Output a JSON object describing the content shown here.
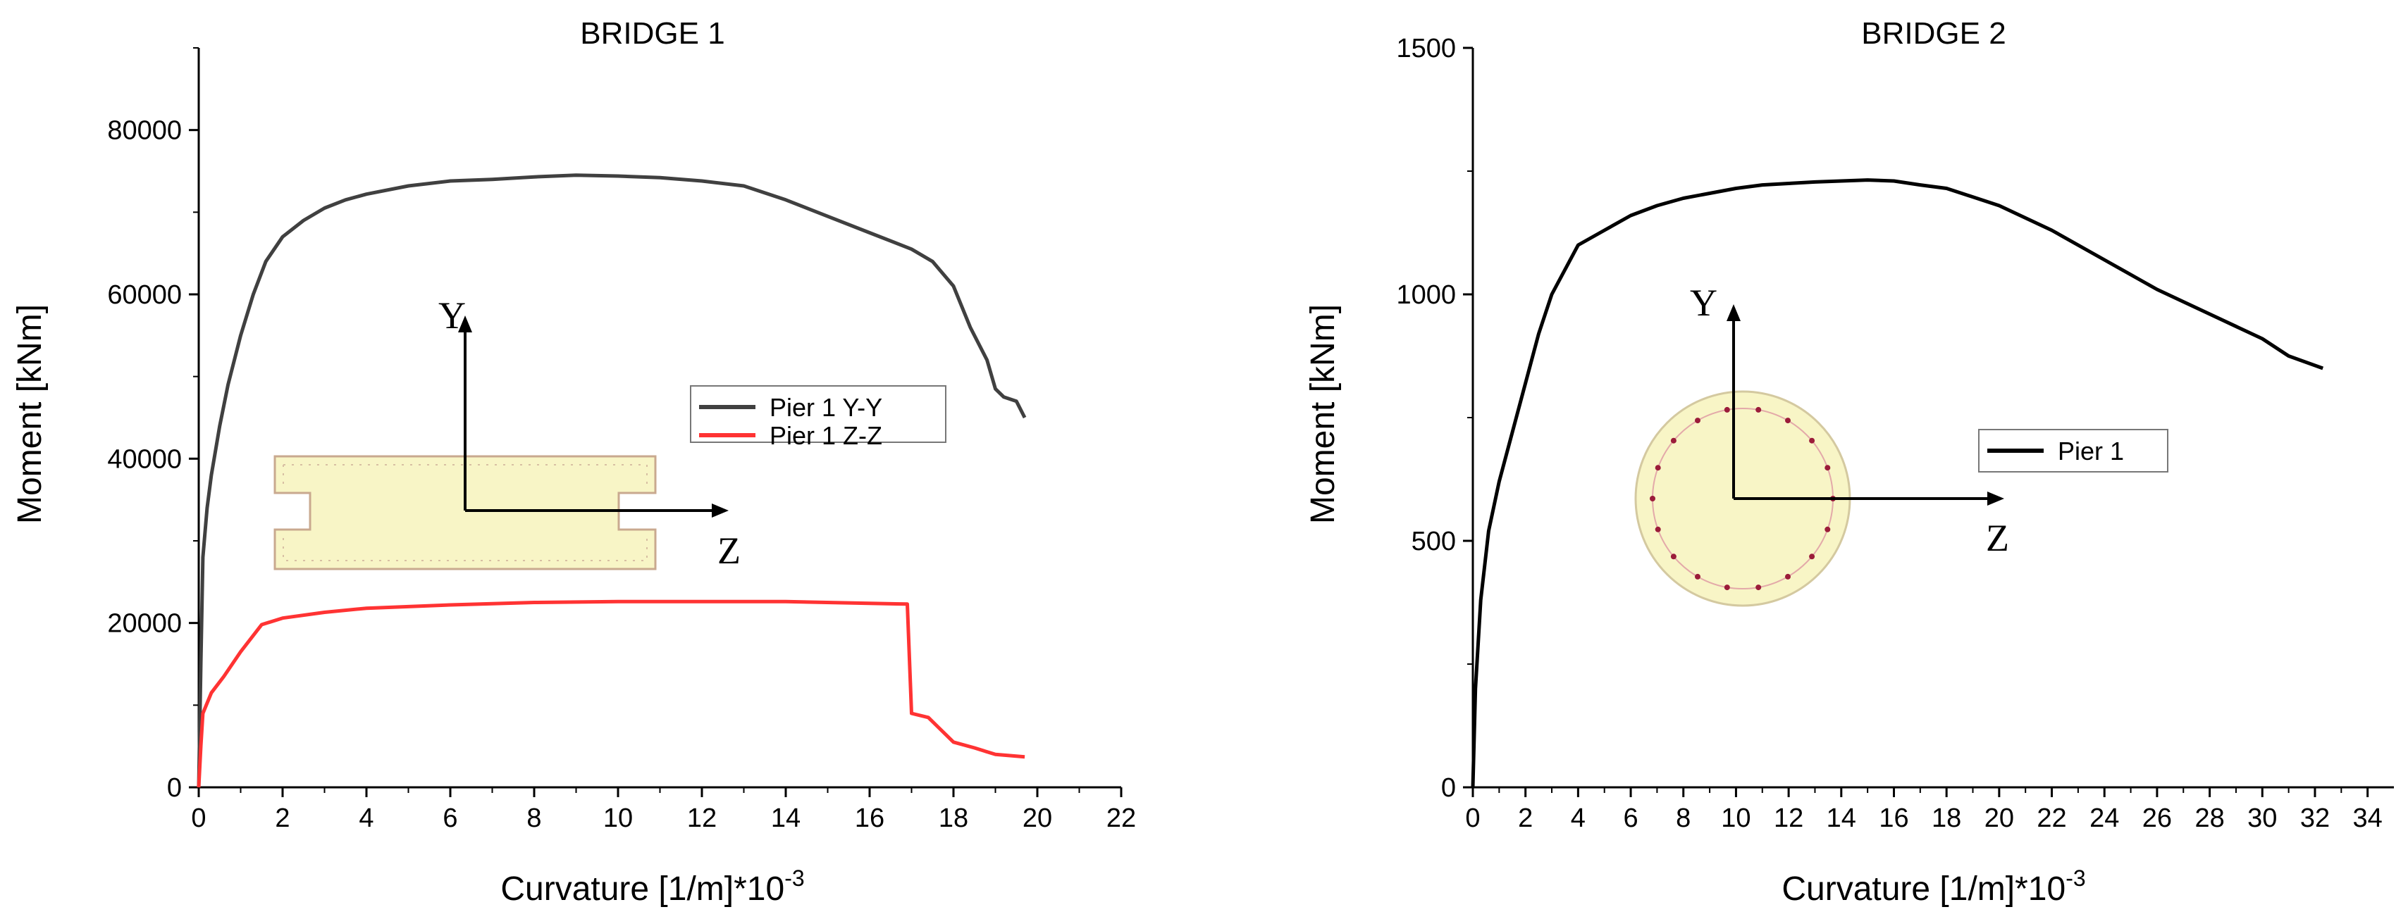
{
  "chart_data": [
    {
      "type": "line",
      "title": "BRIDGE 1",
      "xlabel": "Curvature [1/m]*10",
      "xlabel_sup": "-3",
      "ylabel": "Moment [kNm]",
      "xlim": [
        0,
        22
      ],
      "ylim": [
        0,
        90000
      ],
      "xticks": [
        0,
        2,
        4,
        6,
        8,
        10,
        12,
        14,
        16,
        18,
        20,
        22
      ],
      "yticks": [
        0,
        20000,
        40000,
        60000,
        80000
      ],
      "legend_position": "center-right",
      "inset": {
        "type": "rectangular-section",
        "axis_y": "Y",
        "axis_z": "Z"
      },
      "series": [
        {
          "name": "Pier 1 Y-Y",
          "color": "#404040",
          "x": [
            0,
            0.05,
            0.1,
            0.2,
            0.3,
            0.5,
            0.7,
            1.0,
            1.3,
            1.6,
            2.0,
            2.5,
            3.0,
            3.5,
            4.0,
            5.0,
            6.0,
            7.0,
            8.0,
            9.0,
            10.0,
            11.0,
            12.0,
            13.0,
            14.0,
            15.0,
            16.0,
            17.0,
            17.5,
            18.0,
            18.4,
            18.8,
            19.0,
            19.2,
            19.5,
            19.7
          ],
          "values": [
            0,
            15000,
            28000,
            34000,
            38000,
            44000,
            49000,
            55000,
            60000,
            64000,
            67000,
            69000,
            70500,
            71500,
            72200,
            73200,
            73800,
            74000,
            74300,
            74500,
            74400,
            74200,
            73800,
            73200,
            71500,
            69500,
            67500,
            65500,
            64000,
            61000,
            56000,
            52000,
            48500,
            47500,
            47000,
            45000
          ]
        },
        {
          "name": "Pier 1 Z-Z",
          "color": "#ff3333",
          "x": [
            0,
            0.05,
            0.1,
            0.3,
            0.6,
            1.0,
            1.5,
            2.0,
            3.0,
            4.0,
            6.0,
            8.0,
            10.0,
            12.0,
            14.0,
            16.0,
            16.9,
            17.0,
            17.4,
            17.6,
            18.0,
            18.5,
            19.0,
            19.7
          ],
          "values": [
            0,
            5000,
            9000,
            11500,
            13500,
            16500,
            19800,
            20600,
            21300,
            21800,
            22200,
            22500,
            22600,
            22600,
            22600,
            22400,
            22300,
            9000,
            8500,
            7500,
            5500,
            4800,
            4000,
            3700
          ]
        }
      ]
    },
    {
      "type": "line",
      "title": "BRIDGE 2",
      "xlabel": "Curvature [1/m]*10",
      "xlabel_sup": "-3",
      "ylabel": "Moment [kNm]",
      "xlim": [
        0,
        35
      ],
      "ylim": [
        0,
        1500
      ],
      "xticks": [
        0,
        2,
        4,
        6,
        8,
        10,
        12,
        14,
        16,
        18,
        20,
        22,
        24,
        26,
        28,
        30,
        32,
        34
      ],
      "yticks": [
        0,
        500,
        1000,
        1500
      ],
      "legend_position": "center-right",
      "inset": {
        "type": "circular-section",
        "axis_y": "Y",
        "axis_z": "Z"
      },
      "series": [
        {
          "name": "Pier 1",
          "color": "#000000",
          "x": [
            0,
            0.1,
            0.3,
            0.6,
            1.0,
            1.5,
            2.0,
            2.5,
            3.0,
            3.5,
            4.0,
            5.0,
            6.0,
            7.0,
            8.0,
            9.0,
            10.0,
            11.0,
            12.0,
            13.0,
            14.0,
            15.0,
            16.0,
            17.0,
            18.0,
            20.0,
            22.0,
            24.0,
            26.0,
            28.0,
            30.0,
            31.0,
            32.3
          ],
          "values": [
            0,
            200,
            380,
            520,
            620,
            720,
            820,
            920,
            1000,
            1050,
            1100,
            1130,
            1160,
            1180,
            1195,
            1205,
            1215,
            1222,
            1225,
            1228,
            1230,
            1232,
            1230,
            1222,
            1215,
            1180,
            1130,
            1070,
            1010,
            960,
            910,
            875,
            850
          ]
        }
      ]
    }
  ]
}
